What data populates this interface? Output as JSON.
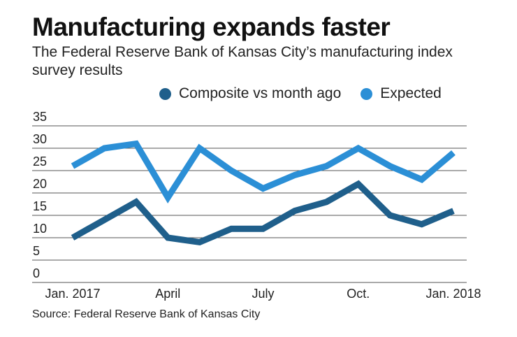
{
  "chart_data": {
    "type": "line",
    "title": "Manufacturing expands faster",
    "subtitle": "The Federal Reserve Bank of Kansas City’s manufacturing index survey results",
    "xlabel": "",
    "ylabel": "",
    "ylim": [
      0,
      35
    ],
    "yticks": [
      "35",
      "30",
      "25",
      "20",
      "15",
      "10",
      "5",
      "0"
    ],
    "ytick_values": [
      35,
      30,
      25,
      20,
      15,
      10,
      5,
      0
    ],
    "xticks": [
      {
        "label": "Jan. 2017",
        "index": 0
      },
      {
        "label": "April",
        "index": 3
      },
      {
        "label": "July",
        "index": 6
      },
      {
        "label": "Oct.",
        "index": 9
      },
      {
        "label": "Jan. 2018",
        "index": 12
      }
    ],
    "x": [
      "Jan 2017",
      "Feb 2017",
      "Mar 2017",
      "Apr 2017",
      "May 2017",
      "Jun 2017",
      "Jul 2017",
      "Aug 2017",
      "Sep 2017",
      "Oct 2017",
      "Nov 2017",
      "Dec 2017",
      "Jan 2018"
    ],
    "grid": true,
    "legend_position": "top",
    "series": [
      {
        "name": "Composite vs month ago",
        "color": "#1f5f8b",
        "values": [
          10,
          14,
          18,
          10,
          9,
          12,
          12,
          16,
          18,
          22,
          15,
          13,
          16
        ]
      },
      {
        "name": "Expected",
        "color": "#2b8fd6",
        "values": [
          26,
          30,
          31,
          19,
          30,
          25,
          21,
          24,
          26,
          30,
          26,
          23,
          29
        ]
      }
    ],
    "source": "Source: Federal Reserve Bank of Kansas City"
  }
}
